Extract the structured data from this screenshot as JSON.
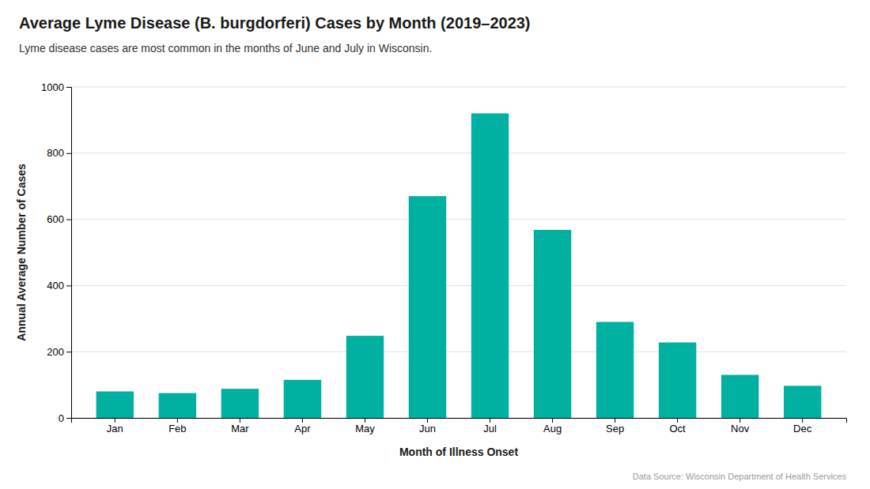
{
  "chart_data": {
    "type": "bar",
    "title": "Average Lyme Disease (B. burgdorferi) Cases by Month (2019–2023)",
    "subtitle": "Lyme disease cases are most common in the months of June and July in Wisconsin.",
    "x_label": "Month of Illness Onset",
    "y_label": "Annual Average Number of Cases",
    "source": "Data Source: Wisconsin Department of Health Services",
    "categories": [
      "Jan",
      "Feb",
      "Mar",
      "Apr",
      "May",
      "Jun",
      "Jul",
      "Aug",
      "Sep",
      "Oct",
      "Nov",
      "Dec"
    ],
    "values": [
      80,
      75,
      88,
      115,
      248,
      670,
      920,
      568,
      290,
      228,
      130,
      97
    ],
    "color": "#00B0A0",
    "ylim": [
      0,
      1000
    ],
    "yticks": [
      0,
      200,
      400,
      600,
      800,
      1000
    ],
    "grid": true
  }
}
